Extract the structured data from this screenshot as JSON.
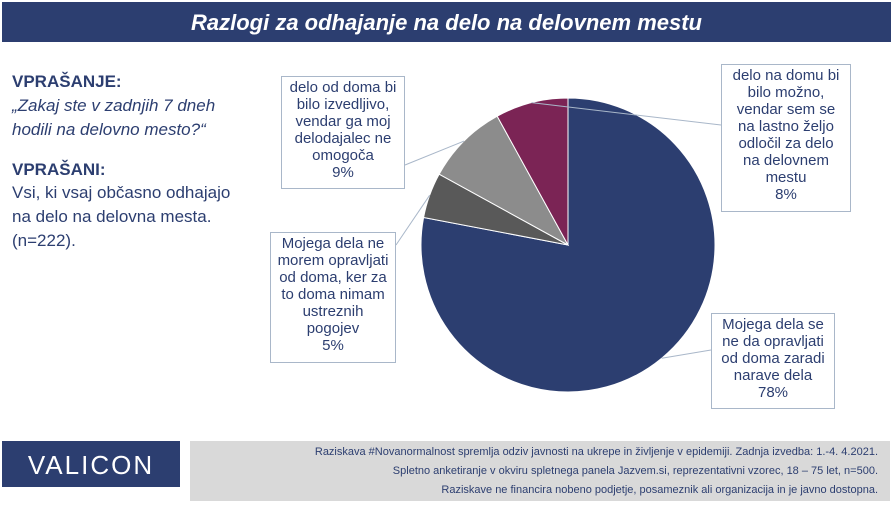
{
  "header": {
    "title": "Razlogi za odhajanje na delo na delovnem mestu"
  },
  "question": {
    "heading": "VPRAŠANJE:",
    "lines": [
      "„Zakaj ste v zadnjih 7 dneh",
      "hodili na delovno mesto?“"
    ]
  },
  "respondents": {
    "heading": "VPRAŠANI:",
    "lines": [
      "Vsi, ki vsaj občasno odhajajo",
      "na delo na delovna mesta.",
      "(n=222)."
    ]
  },
  "chart_data": {
    "type": "pie",
    "slices": [
      {
        "lines": [
          "Mojega dela se",
          "ne da opravljati",
          "od doma zaradi",
          "narave dela"
        ],
        "value": 78,
        "value_label": "78%",
        "color": "#2c3e70"
      },
      {
        "lines": [
          "Mojega dela ne",
          "morem opravljati",
          "od doma, ker za",
          "to doma nimam",
          "ustreznih",
          "pogojev"
        ],
        "value": 5,
        "value_label": "5%",
        "color": "#595959"
      },
      {
        "lines": [
          "delo od doma bi",
          "bilo izvedljivo,",
          "vendar ga moj",
          "delodajalec ne",
          "omogoča"
        ],
        "value": 9,
        "value_label": "9%",
        "color": "#8c8c8c"
      },
      {
        "lines": [
          "delo na domu bi",
          "bilo možno,",
          "vendar sem se",
          "na lastno željo",
          "odločil za delo",
          "na delovnem",
          "mestu"
        ],
        "value": 8,
        "value_label": "8%",
        "color": "#7b2455"
      }
    ]
  },
  "logo": {
    "text": "VALICON"
  },
  "footer": {
    "lines": [
      "Raziskava #Novanormalnost spremlja odziv javnosti na ukrepe in življenje v epidemiji. Zadnja izvedba: 1.-4. 4.2021.",
      "Spletno anketiranje v okviru spletnega panela Jazvem.si, reprezentativni vzorec, 18 – 75 let, n=500.",
      "Raziskave ne financira nobeno podjetje, posameznik ali organizacija in je javno dostopna."
    ]
  }
}
